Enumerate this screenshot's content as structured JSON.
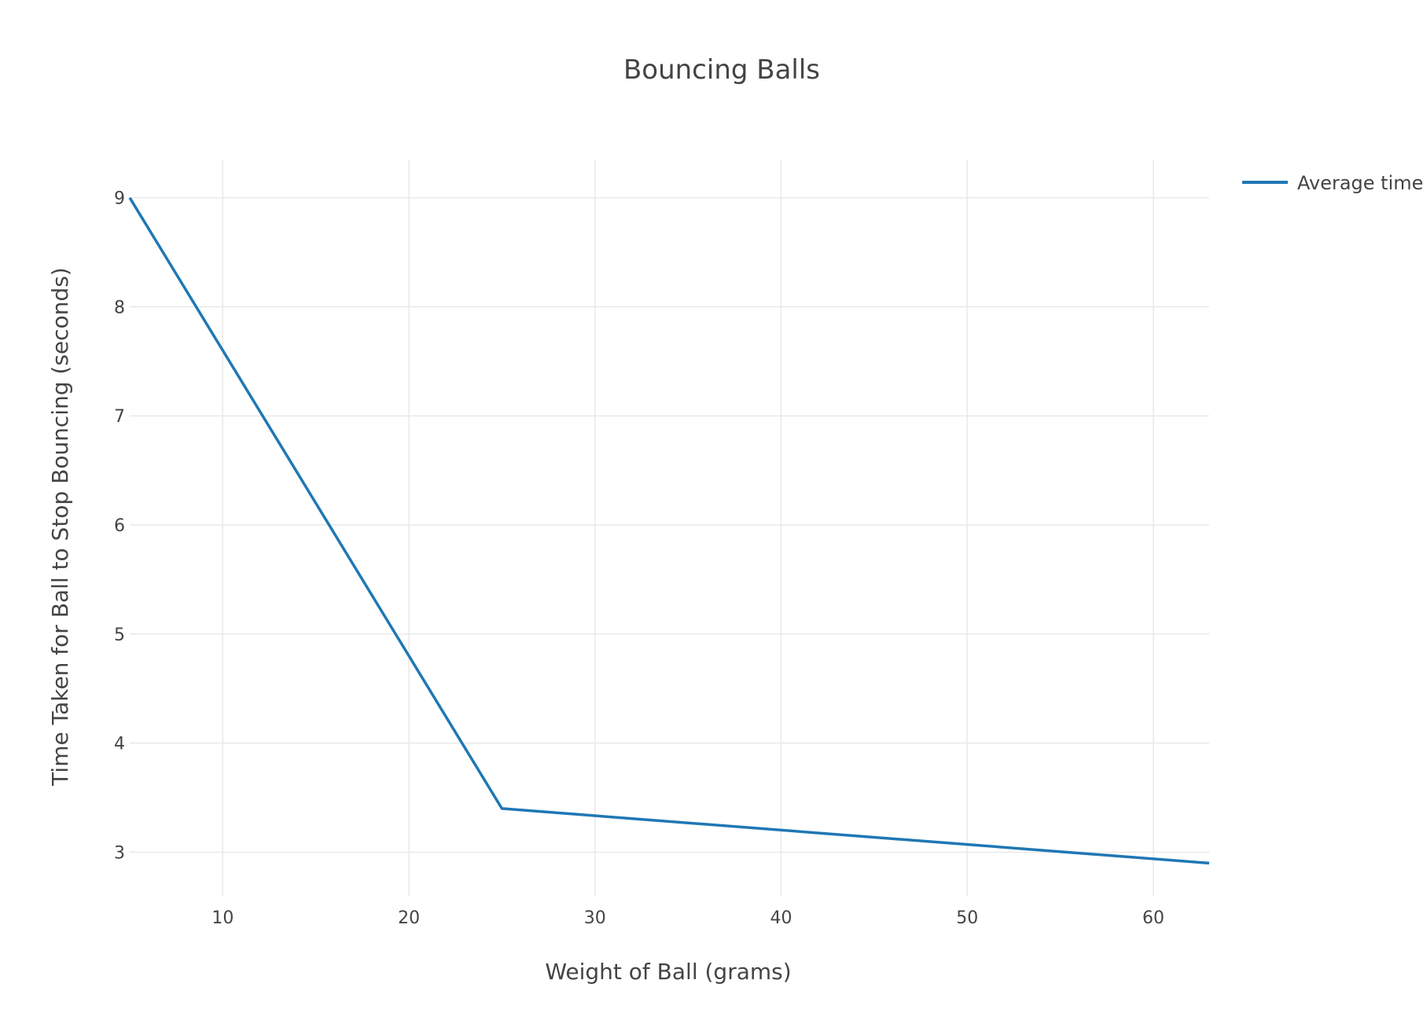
{
  "chart_data": {
    "type": "line",
    "title": "Bouncing Balls",
    "xlabel": "Weight of Ball (grams)",
    "ylabel": "Time Taken for Ball to Stop Bouncing (seconds)",
    "xlim": [
      5,
      63
    ],
    "ylim": [
      2.6,
      9.35
    ],
    "xticks": [
      10,
      20,
      30,
      40,
      50,
      60
    ],
    "yticks": [
      3,
      4,
      5,
      6,
      7,
      8,
      9
    ],
    "grid": true,
    "legend_position": "top-right",
    "series": [
      {
        "name": "Average time",
        "color": "#1f77b4",
        "x": [
          5,
          25,
          63
        ],
        "y": [
          9.0,
          3.4,
          2.9
        ]
      }
    ]
  }
}
